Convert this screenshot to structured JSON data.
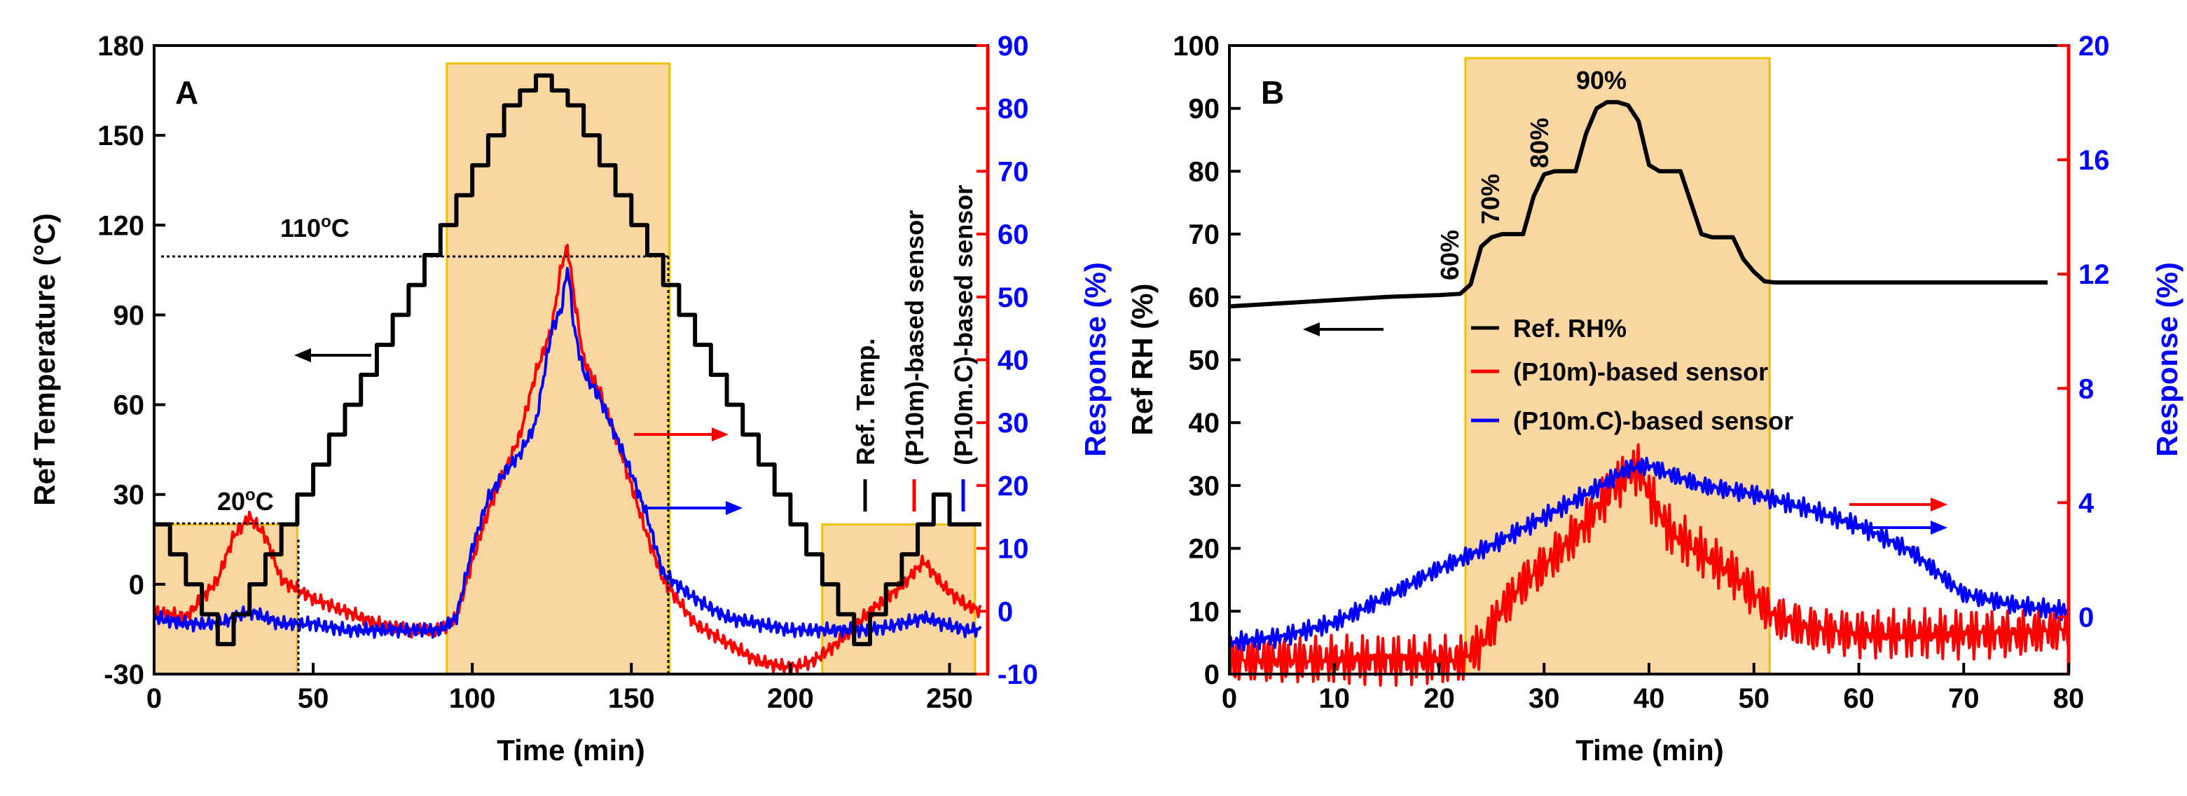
{
  "chart_data": [
    {
      "panel": "A",
      "type": "line",
      "xlabel": "Time (min)",
      "ylabel": "Ref Temperature (°C)",
      "y2label": "Response (%)",
      "xlim": [
        0,
        262
      ],
      "ylim": [
        -30,
        180
      ],
      "y2lim": [
        -10,
        90
      ],
      "xticks": [
        0,
        50,
        100,
        150,
        200,
        250
      ],
      "yticks": [
        -30,
        0,
        30,
        60,
        90,
        120,
        150,
        180
      ],
      "y2ticks": [
        -10,
        0,
        10,
        20,
        30,
        40,
        50,
        60,
        70,
        80,
        90
      ],
      "annotations": {
        "t110": "110",
        "t20": "20",
        "unit_sup": "o",
        "unit": "C"
      },
      "legend": [
        "Ref. Temp.",
        "(P10m)-based sensor",
        "(P10m.C)-based sensor"
      ],
      "series": [
        {
          "name": "Ref. Temp.",
          "color": "#000000",
          "axis": "left",
          "x": [
            0,
            5,
            10,
            15,
            20,
            25,
            30,
            35,
            40,
            45,
            50,
            55,
            60,
            65,
            70,
            75,
            80,
            85,
            90,
            95,
            100,
            105,
            110,
            115,
            120,
            125,
            130,
            135,
            140,
            145,
            150,
            155,
            160,
            165,
            170,
            175,
            180,
            185,
            190,
            195,
            200,
            205,
            210,
            215,
            220,
            225,
            230,
            235,
            240,
            245,
            250,
            255,
            260
          ],
          "values": [
            20,
            10,
            0,
            -10,
            -20,
            -10,
            0,
            10,
            20,
            30,
            40,
            50,
            60,
            70,
            80,
            90,
            100,
            110,
            120,
            130,
            140,
            150,
            160,
            165,
            170,
            165,
            160,
            150,
            140,
            130,
            120,
            110,
            100,
            90,
            80,
            70,
            60,
            50,
            40,
            30,
            20,
            10,
            0,
            -10,
            -20,
            -10,
            0,
            10,
            20,
            30,
            20,
            20,
            20
          ]
        },
        {
          "name": "(P10m)-based sensor",
          "color": "#ff0000",
          "axis": "right",
          "x": [
            0,
            10,
            20,
            25,
            30,
            35,
            40,
            50,
            60,
            70,
            80,
            90,
            95,
            100,
            105,
            110,
            115,
            120,
            125,
            128,
            130,
            132,
            135,
            140,
            145,
            150,
            155,
            160,
            170,
            180,
            190,
            200,
            207,
            215,
            225,
            235,
            242,
            248,
            255,
            260
          ],
          "values": [
            0,
            -1,
            5,
            12,
            15,
            12,
            5,
            2,
            0,
            -2,
            -3,
            -3,
            -1,
            8,
            16,
            22,
            28,
            38,
            45,
            55,
            58,
            50,
            40,
            35,
            28,
            20,
            12,
            5,
            -2,
            -5,
            -8,
            -9,
            -8,
            -5,
            0,
            4,
            8,
            4,
            1,
            0
          ]
        },
        {
          "name": "(P10m.C)-based sensor",
          "color": "#0000ff",
          "axis": "right",
          "x": [
            0,
            10,
            20,
            25,
            30,
            35,
            40,
            50,
            60,
            70,
            80,
            90,
            95,
            100,
            105,
            110,
            115,
            120,
            125,
            128,
            130,
            132,
            135,
            140,
            145,
            150,
            155,
            160,
            170,
            180,
            190,
            200,
            207,
            215,
            225,
            235,
            242,
            248,
            255,
            260
          ],
          "values": [
            -1,
            -2,
            -2,
            -1,
            0,
            -1,
            -2,
            -2,
            -3,
            -3,
            -3,
            -3,
            -1,
            10,
            18,
            22,
            25,
            30,
            45,
            48,
            55,
            45,
            38,
            34,
            28,
            22,
            15,
            6,
            2,
            -1,
            -2,
            -3,
            -3,
            -3,
            -3,
            -2,
            -1,
            -2,
            -3,
            -3
          ]
        }
      ]
    },
    {
      "panel": "B",
      "type": "line",
      "xlabel": "Time (min)",
      "ylabel": "Ref RH (%)",
      "y2label": "Response (%)",
      "xlim": [
        0,
        80
      ],
      "ylim": [
        0,
        100
      ],
      "y2lim": [
        -2,
        20
      ],
      "xticks": [
        0,
        10,
        20,
        30,
        40,
        50,
        60,
        70,
        80
      ],
      "yticks": [
        0,
        10,
        20,
        30,
        40,
        50,
        60,
        70,
        80,
        90,
        100
      ],
      "y2ticks": [
        0,
        4,
        8,
        12,
        16,
        20
      ],
      "annotations": [
        "60%",
        "70%",
        "80%",
        "90%"
      ],
      "legend": [
        "Ref. RH%",
        "(P10m)-based sensor",
        "(P10m.C)-based sensor"
      ],
      "series": [
        {
          "name": "Ref. RH%",
          "color": "#000000",
          "axis": "left",
          "x": [
            0,
            5,
            10,
            15,
            20,
            22,
            23,
            24,
            25,
            26,
            27,
            28,
            29,
            30,
            31,
            32,
            33,
            34,
            35,
            36,
            37,
            38,
            39,
            40,
            41,
            42,
            43,
            44,
            45,
            46,
            47,
            48,
            49,
            50,
            51,
            52,
            55,
            60,
            65,
            70,
            75,
            78
          ],
          "values": [
            58.5,
            59,
            59.5,
            60,
            60.3,
            60.5,
            62,
            68,
            69.5,
            70,
            70,
            70,
            76,
            79.5,
            80,
            80,
            80,
            86,
            90,
            91,
            91,
            90.5,
            88,
            81,
            80,
            80,
            80,
            75,
            70,
            69.5,
            69.5,
            69.5,
            66,
            64,
            62.5,
            62.3,
            62.3,
            62.3,
            62.3,
            62.3,
            62.3,
            62.3
          ]
        },
        {
          "name": "(P10m)-based sensor",
          "color": "#ff0000",
          "axis": "right",
          "x": [
            0,
            5,
            10,
            15,
            20,
            22,
            24,
            26,
            28,
            30,
            32,
            34,
            36,
            38,
            39,
            40,
            42,
            44,
            46,
            48,
            50,
            52,
            55,
            60,
            65,
            70,
            75,
            80
          ],
          "values": [
            -1.5,
            -1.5,
            -1.5,
            -1.5,
            -1.5,
            -1.5,
            -1,
            0.3,
            1.2,
            1.8,
            2.5,
            3.3,
            4.3,
            5,
            5.2,
            4.3,
            3,
            2.5,
            2,
            1.5,
            0.8,
            0,
            -0.4,
            -0.6,
            -0.6,
            -0.6,
            -0.6,
            -0.4
          ]
        },
        {
          "name": "(P10m.C)-based sensor",
          "color": "#0000ff",
          "axis": "right",
          "x": [
            0,
            5,
            10,
            15,
            20,
            25,
            30,
            35,
            38,
            40,
            42,
            45,
            50,
            55,
            60,
            65,
            70,
            75,
            80
          ],
          "values": [
            -0.9,
            -0.7,
            -0.2,
            0.7,
            1.7,
            2.5,
            3.5,
            4.5,
            5.2,
            5.3,
            5,
            4.6,
            4.3,
            3.8,
            3.2,
            2.3,
            0.8,
            0.4,
            0.2
          ]
        }
      ]
    }
  ],
  "colors": {
    "shade": "#fad7a0",
    "shade_edge": "#f0c000",
    "left_axis": "#000000",
    "right_axis": "#ff0000",
    "right_title": "#0000ff"
  }
}
